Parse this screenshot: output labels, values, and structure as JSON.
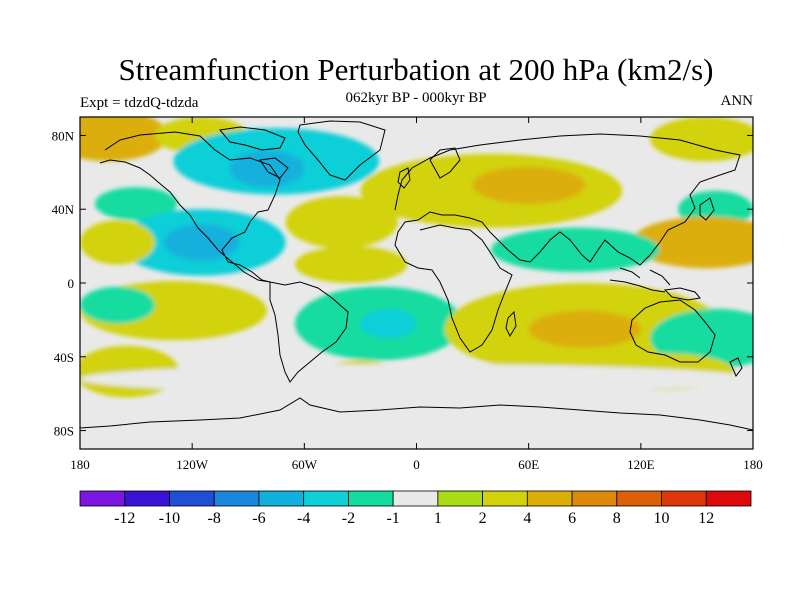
{
  "title": "Streamfunction Perturbation at 200 hPa (km2/s)",
  "subtitle": "062kyr BP - 000kyr BP",
  "left_label": "Expt = tdzdQ-tdzda",
  "right_label": "ANN",
  "map": {
    "lon_ticks": [
      "180",
      "120W",
      "60W",
      "0",
      "60E",
      "120E",
      "180"
    ],
    "lat_ticks": [
      "80N",
      "40N",
      "0",
      "40S",
      "80S"
    ],
    "field": {
      "blobs": [
        {
          "lon": -165,
          "lat": 80,
          "rx": 32,
          "ry": 14,
          "value": 5
        },
        {
          "lon": -115,
          "lat": 80,
          "rx": 25,
          "ry": 10,
          "value": 2
        },
        {
          "lon": -75,
          "lat": 66,
          "rx": 55,
          "ry": 18,
          "value": -3
        },
        {
          "lon": -80,
          "lat": 62,
          "rx": 20,
          "ry": 10,
          "value": -5
        },
        {
          "lon": -150,
          "lat": 43,
          "rx": 22,
          "ry": 9,
          "value": -2
        },
        {
          "lon": -115,
          "lat": 22,
          "rx": 45,
          "ry": 18,
          "value": -3
        },
        {
          "lon": -115,
          "lat": 22,
          "rx": 20,
          "ry": 10,
          "value": -5
        },
        {
          "lon": -40,
          "lat": 33,
          "rx": 30,
          "ry": 14,
          "value": 3
        },
        {
          "lon": -35,
          "lat": 10,
          "rx": 30,
          "ry": 10,
          "value": 2
        },
        {
          "lon": 40,
          "lat": 50,
          "rx": 70,
          "ry": 20,
          "value": 3
        },
        {
          "lon": 60,
          "lat": 53,
          "rx": 30,
          "ry": 10,
          "value": 5
        },
        {
          "lon": 155,
          "lat": 78,
          "rx": 30,
          "ry": 12,
          "value": 3
        },
        {
          "lon": 160,
          "lat": 40,
          "rx": 20,
          "ry": 10,
          "value": -2
        },
        {
          "lon": 155,
          "lat": 22,
          "rx": 40,
          "ry": 14,
          "value": 4
        },
        {
          "lon": 85,
          "lat": 18,
          "rx": 45,
          "ry": 12,
          "value": -2
        },
        {
          "lon": -160,
          "lat": 22,
          "rx": 20,
          "ry": 12,
          "value": 3
        },
        {
          "lon": -130,
          "lat": -15,
          "rx": 50,
          "ry": 16,
          "value": 3
        },
        {
          "lon": -160,
          "lat": -12,
          "rx": 20,
          "ry": 10,
          "value": -2
        },
        {
          "lon": -20,
          "lat": -22,
          "rx": 45,
          "ry": 20,
          "value": -2
        },
        {
          "lon": -15,
          "lat": -22,
          "rx": 15,
          "ry": 8,
          "value": -4
        },
        {
          "lon": 90,
          "lat": -25,
          "rx": 75,
          "ry": 25,
          "value": 3
        },
        {
          "lon": 90,
          "lat": -25,
          "rx": 30,
          "ry": 10,
          "value": 5
        },
        {
          "lon": 160,
          "lat": -30,
          "rx": 35,
          "ry": 16,
          "value": -2
        },
        {
          "lon": -155,
          "lat": -48,
          "rx": 28,
          "ry": 14,
          "value": 3
        },
        {
          "lon": -30,
          "lat": -50,
          "rx": 20,
          "ry": 8,
          "value": 2
        },
        {
          "lon": 130,
          "lat": -48,
          "rx": 40,
          "ry": 10,
          "value": 2
        },
        {
          "lon": 0,
          "lat": -52,
          "rx": 180,
          "ry": 8,
          "value": -1
        }
      ]
    }
  },
  "colorbar": {
    "colors": [
      "#7a16e0",
      "#3a12d8",
      "#1e4fd6",
      "#1a86dc",
      "#12b0dc",
      "#10cfd8",
      "#14dca0",
      "#e9e9e9",
      "#a8dc14",
      "#d2d20a",
      "#dcae08",
      "#dc8a08",
      "#dc6008",
      "#dc380a",
      "#dc0a0a"
    ],
    "labels": [
      "-12",
      "-10",
      "-8",
      "-6",
      "-4",
      "-2",
      "-1",
      "1",
      "2",
      "4",
      "6",
      "8",
      "10",
      "12"
    ]
  }
}
